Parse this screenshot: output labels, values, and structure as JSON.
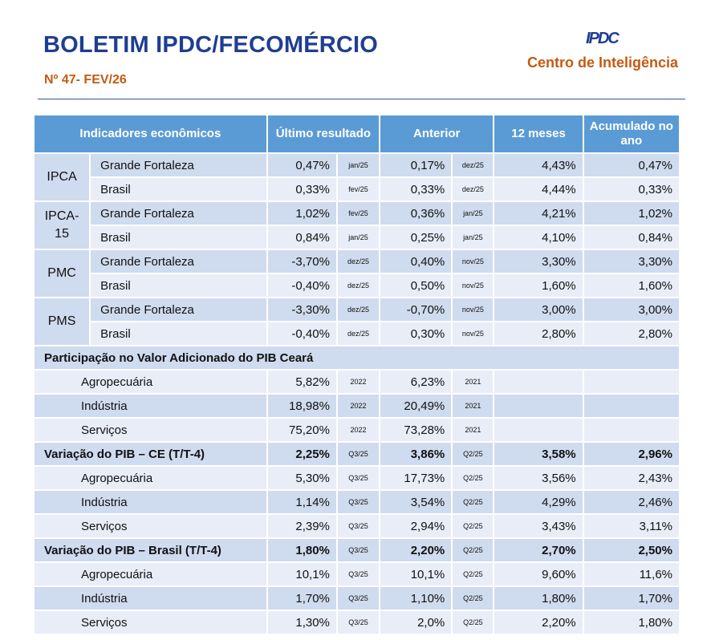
{
  "header": {
    "title": "BOLETIM IPDC/FECOMÉRCIO",
    "edition": "Nº 47- FEV/26",
    "logo_text": "IPDC",
    "center_name": "Centro de Inteligência"
  },
  "colors": {
    "title": "#1f3e93",
    "accent": "#c55a11",
    "table_header": "#5b9bd5",
    "row_dark": "#cfdbee",
    "row_light": "#e8edf7"
  },
  "table": {
    "columns": [
      "Indicadores econômicos",
      "Último resultado",
      "Anterior",
      "12 meses",
      "Acumulado no ano"
    ],
    "groups": [
      {
        "name": "IPCA",
        "rows": [
          {
            "label": "Grande Fortaleza",
            "last": "0,47%",
            "last_date": "jan/25",
            "prev": "0,17%",
            "prev_date": "dez/25",
            "m12": "4,43%",
            "ytd": "0,47%"
          },
          {
            "label": "Brasil",
            "last": "0,33%",
            "last_date": "fev/25",
            "prev": "0,33%",
            "prev_date": "dez/25",
            "m12": "4,44%",
            "ytd": "0,33%"
          }
        ]
      },
      {
        "name": "IPCA-15",
        "rows": [
          {
            "label": "Grande Fortaleza",
            "last": "1,02%",
            "last_date": "fev/25",
            "prev": "0,36%",
            "prev_date": "jan/25",
            "m12": "4,21%",
            "ytd": "1,02%"
          },
          {
            "label": "Brasil",
            "last": "0,84%",
            "last_date": "jan/25",
            "prev": "0,25%",
            "prev_date": "jan/25",
            "m12": "4,10%",
            "ytd": "0,84%"
          }
        ]
      },
      {
        "name": "PMC",
        "rows": [
          {
            "label": "Grande Fortaleza",
            "last": "-3,70%",
            "last_date": "dez/25",
            "prev": "0,40%",
            "prev_date": "nov/25",
            "m12": "3,30%",
            "ytd": "3,30%"
          },
          {
            "label": "Brasil",
            "last": "-0,40%",
            "last_date": "dez/25",
            "prev": "0,50%",
            "prev_date": "nov/25",
            "m12": "1,60%",
            "ytd": "1,60%"
          }
        ]
      },
      {
        "name": "PMS",
        "rows": [
          {
            "label": "Grande Fortaleza",
            "last": "-3,30%",
            "last_date": "dez/25",
            "prev": "-0,70%",
            "prev_date": "nov/25",
            "m12": "3,00%",
            "ytd": "3,00%"
          },
          {
            "label": "Brasil",
            "last": "-0,40%",
            "last_date": "dez/25",
            "prev": "0,30%",
            "prev_date": "nov/25",
            "m12": "2,80%",
            "ytd": "2,80%"
          }
        ]
      }
    ],
    "participation": {
      "title": "Participação no Valor Adicionado do PIB Ceará",
      "rows": [
        {
          "label": "Agropecuária",
          "last": "5,82%",
          "last_date": "2022",
          "prev": "6,23%",
          "prev_date": "2021",
          "m12": "",
          "ytd": ""
        },
        {
          "label": "Indústria",
          "last": "18,98%",
          "last_date": "2022",
          "prev": "20,49%",
          "prev_date": "2021",
          "m12": "",
          "ytd": ""
        },
        {
          "label": "Serviços",
          "last": "75,20%",
          "last_date": "2022",
          "prev": "73,28%",
          "prev_date": "2021",
          "m12": "",
          "ytd": ""
        }
      ]
    },
    "gdp_sections": [
      {
        "head": {
          "label": "Variação do PIB – CE (T/T-4)",
          "last": "2,25%",
          "last_date": "Q3/25",
          "prev": "3,86%",
          "prev_date": "Q2/25",
          "m12": "3,58%",
          "ytd": "2,96%"
        },
        "rows": [
          {
            "label": "Agropecuária",
            "last": "5,30%",
            "last_date": "Q3/25",
            "prev": "17,73%",
            "prev_date": "Q2/25",
            "m12": "3,56%",
            "ytd": "2,43%"
          },
          {
            "label": "Indústria",
            "last": "1,14%",
            "last_date": "Q3/25",
            "prev": "3,54%",
            "prev_date": "Q2/25",
            "m12": "4,29%",
            "ytd": "2,46%"
          },
          {
            "label": "Serviços",
            "last": "2,39%",
            "last_date": "Q3/25",
            "prev": "2,94%",
            "prev_date": "Q2/25",
            "m12": "3,43%",
            "ytd": "3,11%"
          }
        ]
      },
      {
        "head": {
          "label": "Variação do PIB – Brasil (T/T-4)",
          "last": "1,80%",
          "last_date": "Q3/25",
          "prev": "2,20%",
          "prev_date": "Q2/25",
          "m12": "2,70%",
          "ytd": "2,50%"
        },
        "rows": [
          {
            "label": "Agropecuária",
            "last": "10,1%",
            "last_date": "Q3/25",
            "prev": "10,1%",
            "prev_date": "Q2/25",
            "m12": "9,60%",
            "ytd": "11,6%"
          },
          {
            "label": "Indústria",
            "last": "1,70%",
            "last_date": "Q3/25",
            "prev": "1,10%",
            "prev_date": "Q2/25",
            "m12": "1,80%",
            "ytd": "1,70%"
          },
          {
            "label": "Serviços",
            "last": "1,30%",
            "last_date": "Q3/25",
            "prev": "2,0%",
            "prev_date": "Q2/25",
            "m12": "2,20%",
            "ytd": "1,80%"
          }
        ]
      }
    ]
  }
}
